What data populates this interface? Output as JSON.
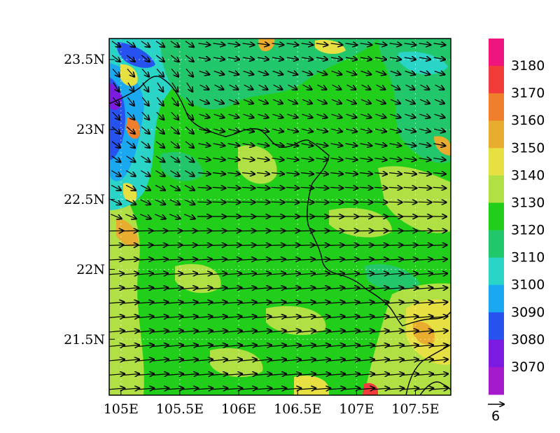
{
  "map": {
    "x_ticks": [
      "105E",
      "105.5E",
      "106E",
      "106.5E",
      "107E",
      "107.5E"
    ],
    "x_tick_values": [
      105,
      105.5,
      106,
      106.5,
      107,
      107.5
    ],
    "y_ticks": [
      "23.5N",
      "23N",
      "22.5N",
      "22N",
      "21.5N"
    ],
    "y_tick_values": [
      23.5,
      23,
      22.5,
      22,
      21.5
    ],
    "lon_range": [
      104.9,
      107.8
    ],
    "lat_range": [
      21.1,
      23.65
    ],
    "dominant_level": 3120,
    "wind": {
      "reference_vector_label": "6",
      "rows": [
        {
          "lat": 23.55,
          "u": 4.4,
          "v": -0.6,
          "note": "north edge"
        },
        {
          "lat": 23.3,
          "u": 3.4,
          "v": -1.8
        },
        {
          "lat": 23.0,
          "u": 4.2,
          "v": -1.0
        },
        {
          "lat": 22.5,
          "u": 5.0,
          "v": -0.2
        },
        {
          "lat": 22.0,
          "u": 5.8,
          "v": 0.4
        },
        {
          "lat": 21.5,
          "u": 6.2,
          "v": 0.6
        },
        {
          "lat": 21.15,
          "u": 6.4,
          "v": 0.5
        }
      ]
    }
  },
  "colorbar": {
    "labels": [
      "3180",
      "3170",
      "3160",
      "3150",
      "3140",
      "3130",
      "3120",
      "3110",
      "3100",
      "3090",
      "3080",
      "3070"
    ],
    "colors_top_to_bottom": [
      "#f0147f",
      "#f23c3c",
      "#ef7f2d",
      "#e8ad2e",
      "#e6e043",
      "#b0e043",
      "#21cf1a",
      "#23c76b",
      "#2ad4c6",
      "#1aa8f0",
      "#2652f0",
      "#7d1ae0",
      "#a51acc"
    ]
  }
}
